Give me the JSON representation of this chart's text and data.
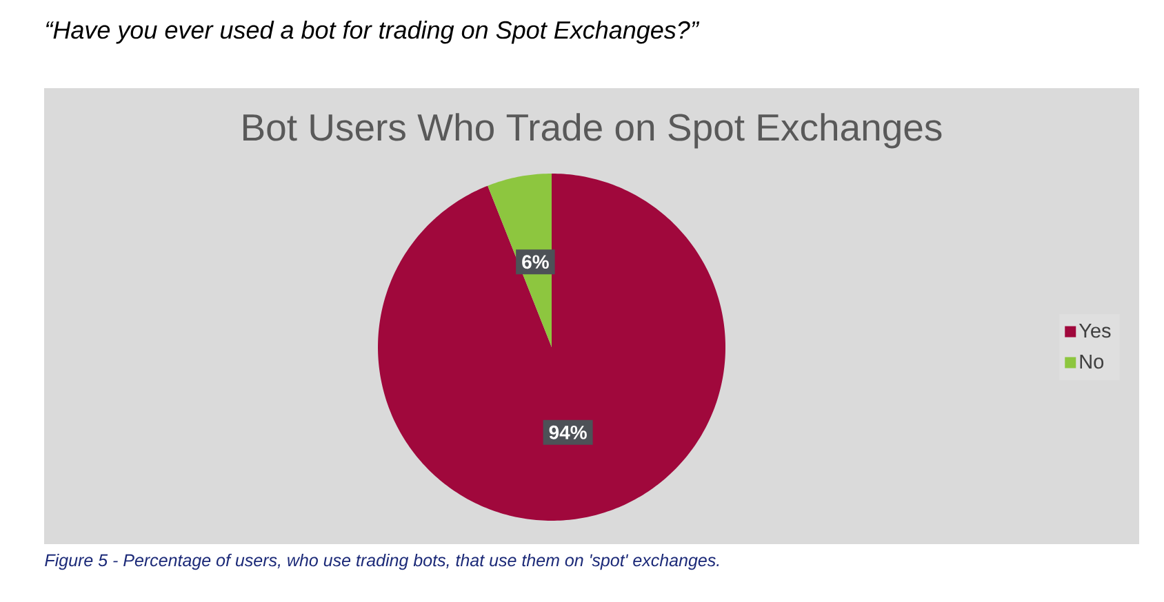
{
  "chart_data": {
    "type": "pie",
    "title": "Bot Users Who Trade on Spot Exchanges",
    "categories": [
      "Yes",
      "No"
    ],
    "values": [
      94,
      6
    ],
    "colors": [
      "#a0083c",
      "#8dc63f"
    ],
    "value_labels": [
      "94%",
      "6%"
    ],
    "legend": "right",
    "annotations": [
      "“Have you ever used a bot for trading on Spot Exchanges?”",
      "Figure 5 - Percentage of users, who use trading bots, that use them on 'spot' exchanges."
    ]
  }
}
